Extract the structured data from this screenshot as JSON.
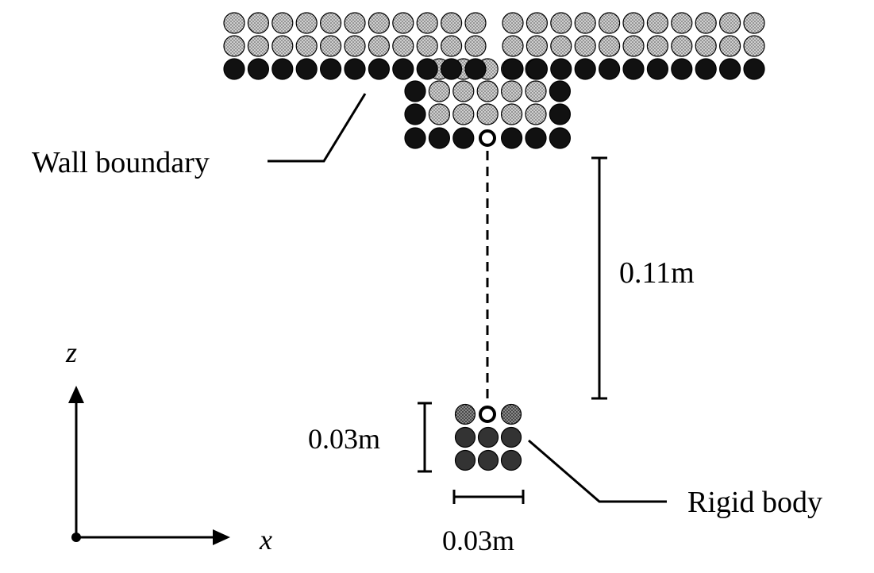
{
  "labels": {
    "wall_boundary": "Wall boundary",
    "rigid_body": "Rigid body",
    "height_gap": "0.11m",
    "body_height": "0.03m",
    "body_width": "0.03m",
    "axis_x": "x",
    "axis_z": "z"
  },
  "colors": {
    "fluid_particle": "#bdbdbd",
    "wall_particle": "#111111",
    "body_particle_light": "#9a9a9a",
    "body_particle_dark": "#333333",
    "line": "#000000"
  }
}
